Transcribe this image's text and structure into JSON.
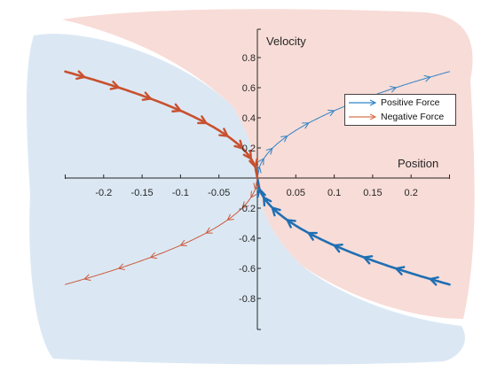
{
  "chart_data": {
    "type": "line",
    "xlabel": "Position",
    "ylabel": "Velocity",
    "xlim": [
      -0.25,
      0.25
    ],
    "ylim": [
      -1,
      1
    ],
    "x_ticks": [
      -0.2,
      -0.15,
      -0.1,
      -0.05,
      0.05,
      0.1,
      0.15,
      0.2
    ],
    "x_tick_labels": [
      "-0.2",
      "-0.15",
      "-0.1",
      "-0.05",
      "0.05",
      "0.1",
      "0.15",
      "0.2"
    ],
    "y_ticks": [
      -0.8,
      -0.6,
      -0.4,
      -0.2,
      0.2,
      0.4,
      0.6,
      0.8
    ],
    "y_tick_labels": [
      "-0.8",
      "-0.6",
      "-0.4",
      "-0.2",
      "0.2",
      "0.4",
      "0.6",
      "0.8"
    ],
    "grid": false,
    "legend_position": "top-right",
    "regions": [
      {
        "name": "Positive Force region",
        "color": "#dbe8f4"
      },
      {
        "name": "Negative Force region",
        "color": "#f8dcd7"
      }
    ],
    "series": [
      {
        "name": "Positive Force",
        "color": "#2e83c6",
        "style": "thin",
        "x": [
          0,
          0.005,
          0.02,
          0.05,
          0.1,
          0.15,
          0.2,
          0.25
        ],
        "y": [
          0,
          0.1,
          0.2,
          0.316,
          0.447,
          0.548,
          0.632,
          0.707
        ]
      },
      {
        "name": "Positive Force",
        "color": "#1f6fb3",
        "style": "thick",
        "x": [
          0,
          0.005,
          0.02,
          0.05,
          0.1,
          0.15,
          0.2,
          0.25
        ],
        "y": [
          0,
          -0.1,
          -0.2,
          -0.316,
          -0.447,
          -0.548,
          -0.632,
          -0.707
        ]
      },
      {
        "name": "Negative Force",
        "color": "#cc5a3b",
        "style": "thin",
        "x": [
          0,
          -0.005,
          -0.02,
          -0.05,
          -0.1,
          -0.15,
          -0.2,
          -0.25
        ],
        "y": [
          0,
          -0.1,
          -0.2,
          -0.316,
          -0.447,
          -0.548,
          -0.632,
          -0.707
        ]
      },
      {
        "name": "Negative Force",
        "color": "#c9502e",
        "style": "thick",
        "x": [
          0,
          -0.005,
          -0.02,
          -0.05,
          -0.1,
          -0.15,
          -0.2,
          -0.25
        ],
        "y": [
          0,
          0.1,
          0.2,
          0.316,
          0.447,
          0.548,
          0.632,
          0.707
        ]
      }
    ]
  },
  "legend": {
    "items": [
      {
        "label": "Positive Force",
        "color": "#2e83c6"
      },
      {
        "label": "Negative Force",
        "color": "#d9744f"
      }
    ]
  }
}
